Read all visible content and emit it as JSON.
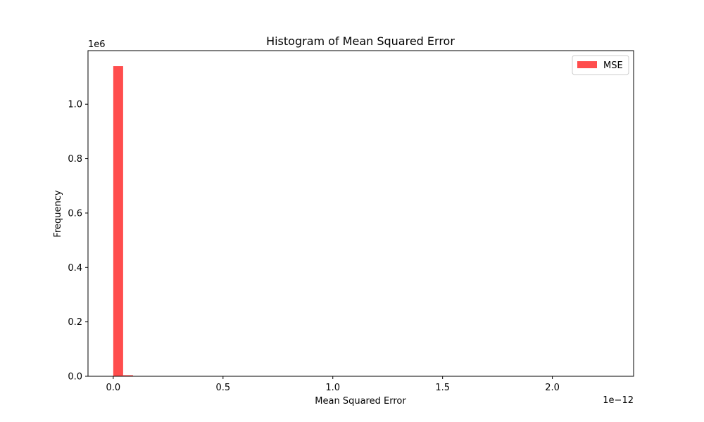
{
  "chart_data": {
    "type": "bar",
    "title": "Histogram of Mean Squared Error",
    "xlabel": "Mean Squared Error",
    "ylabel": "Frequency",
    "x_offset_label": "1e−12",
    "y_offset_label": "1e6",
    "xlim": [
      -0.115,
      2.37
    ],
    "ylim": [
      0,
      1.197
    ],
    "x_ticks": [
      {
        "value": 0.0,
        "label": "0.0"
      },
      {
        "value": 0.5,
        "label": "0.5"
      },
      {
        "value": 1.0,
        "label": "1.0"
      },
      {
        "value": 1.5,
        "label": "1.5"
      },
      {
        "value": 2.0,
        "label": "2.0"
      }
    ],
    "y_ticks": [
      {
        "value": 0.0,
        "label": "0.0"
      },
      {
        "value": 0.2,
        "label": "0.2"
      },
      {
        "value": 0.4,
        "label": "0.4"
      },
      {
        "value": 0.6,
        "label": "0.6"
      },
      {
        "value": 0.8,
        "label": "0.8"
      },
      {
        "value": 1.0,
        "label": "1.0"
      }
    ],
    "series": [
      {
        "name": "MSE",
        "color": "#ff4d4d",
        "bins": [
          {
            "x0": 0.0,
            "x1": 0.045,
            "value": 1.14
          },
          {
            "x0": 0.045,
            "x1": 0.09,
            "value": 0.004
          }
        ]
      }
    ],
    "legend": {
      "position": "top-right",
      "entries": [
        "MSE"
      ]
    },
    "grid": false
  }
}
